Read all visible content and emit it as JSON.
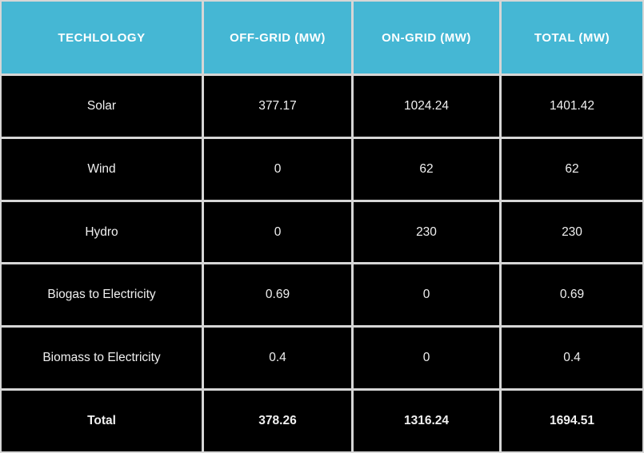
{
  "chart_data": {
    "type": "table",
    "columns": [
      "TECHLOLOGY",
      "OFF-GRID (MW)",
      "ON-GRID (MW)",
      "TOTAL (MW)"
    ],
    "rows": [
      [
        "Solar",
        "377.17",
        "1024.24",
        "1401.42"
      ],
      [
        "Wind",
        "0",
        "62",
        "62"
      ],
      [
        "Hydro",
        "0",
        "230",
        "230"
      ],
      [
        "Biogas to Electricity",
        "0.69",
        "0",
        "0.69"
      ],
      [
        "Biomass to Electricity",
        "0.4",
        "0",
        "0.4"
      ],
      [
        "Total",
        "378.26",
        "1316.24",
        "1694.51"
      ]
    ]
  },
  "colors": {
    "header_bg": "#45b7d4",
    "cell_bg": "#000000",
    "grid_line": "#d6d6d6",
    "header_text": "#ffffff",
    "cell_text": "#f0f0f0"
  }
}
